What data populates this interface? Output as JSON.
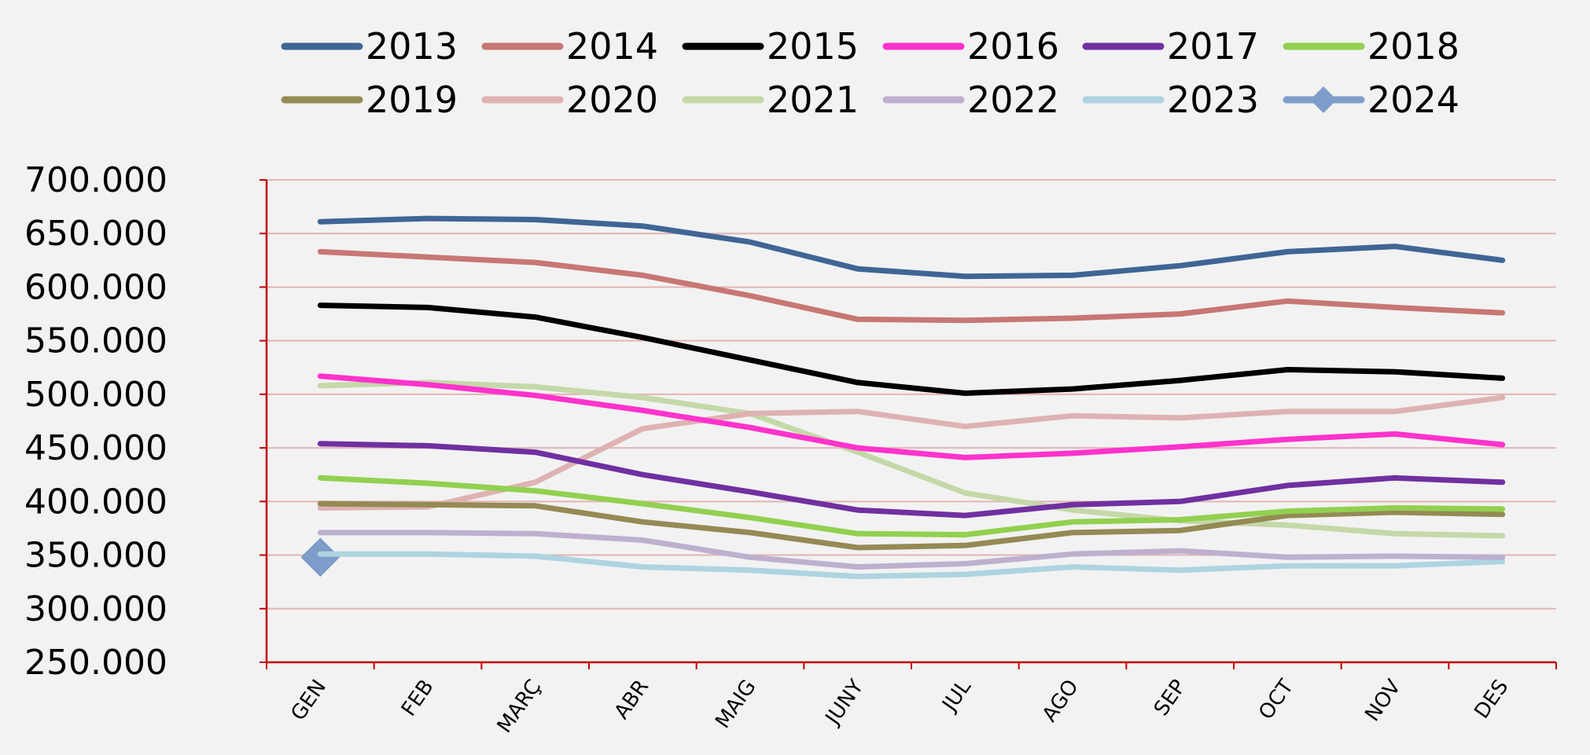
{
  "chart_data": {
    "type": "line",
    "categories": [
      "GEN",
      "FEB",
      "MARÇ",
      "ABR",
      "MAIG",
      "JUNY",
      "JUL",
      "AGO",
      "SEP",
      "OCT",
      "NOV",
      "DES"
    ],
    "ylim": [
      250000,
      700000
    ],
    "yticks": [
      700000,
      650000,
      600000,
      550000,
      500000,
      450000,
      400000,
      350000,
      300000,
      250000
    ],
    "ytick_labels": [
      "700.000",
      "650.000",
      "600.000",
      "550.000",
      "500.000",
      "450.000",
      "400.000",
      "350.000",
      "300.000",
      "250.000"
    ],
    "grid": true,
    "legend_position": "top",
    "series": [
      {
        "name": "2013",
        "color": "#3f6595",
        "values": [
          661000,
          664000,
          663000,
          657000,
          642000,
          617000,
          610000,
          611000,
          620000,
          633000,
          638000,
          625000
        ]
      },
      {
        "name": "2014",
        "color": "#c77774",
        "values": [
          633000,
          628000,
          623000,
          611000,
          592000,
          570000,
          569000,
          571000,
          575000,
          587000,
          581000,
          576000
        ]
      },
      {
        "name": "2015",
        "color": "#000000",
        "values": [
          583000,
          581000,
          572000,
          553000,
          532000,
          511000,
          501000,
          505000,
          513000,
          523000,
          521000,
          515000
        ]
      },
      {
        "name": "2016",
        "color": "#ff33cc",
        "values": [
          517000,
          509000,
          499000,
          485000,
          469000,
          450000,
          441000,
          445000,
          451000,
          458000,
          463000,
          453000
        ]
      },
      {
        "name": "2017",
        "color": "#7030a0",
        "values": [
          454000,
          452000,
          446000,
          425000,
          409000,
          392000,
          387000,
          397000,
          400000,
          415000,
          422000,
          418000
        ]
      },
      {
        "name": "2018",
        "color": "#92d050",
        "values": [
          422000,
          417000,
          410000,
          398000,
          385000,
          370000,
          369000,
          381000,
          383000,
          391000,
          394000,
          393000
        ]
      },
      {
        "name": "2019",
        "color": "#948a54",
        "values": [
          398000,
          397000,
          396000,
          381000,
          371000,
          357000,
          359000,
          371000,
          373000,
          387000,
          390000,
          388000
        ]
      },
      {
        "name": "2020",
        "color": "#dfb2b2",
        "values": [
          394000,
          395000,
          418000,
          468000,
          482000,
          484000,
          470000,
          480000,
          478000,
          484000,
          484000,
          497000
        ]
      },
      {
        "name": "2021",
        "color": "#c4d8a8",
        "values": [
          508000,
          511000,
          507000,
          497000,
          482000,
          446000,
          408000,
          392000,
          382000,
          378000,
          370000,
          368000
        ]
      },
      {
        "name": "2022",
        "color": "#bdb0ce",
        "values": [
          371000,
          371000,
          370000,
          364000,
          348000,
          339000,
          342000,
          351000,
          354000,
          348000,
          349000,
          348000
        ]
      },
      {
        "name": "2023",
        "color": "#add4e0",
        "values": [
          351000,
          351000,
          349000,
          339000,
          336000,
          330000,
          332000,
          339000,
          336000,
          340000,
          340000,
          344000
        ]
      },
      {
        "name": "2024",
        "color": "#7f9dcb",
        "marker": "diamond",
        "values": [
          348000,
          null,
          null,
          null,
          null,
          null,
          null,
          null,
          null,
          null,
          null,
          null
        ]
      }
    ]
  }
}
